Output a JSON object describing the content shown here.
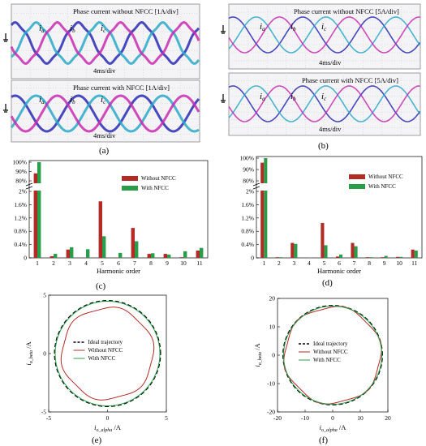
{
  "scopes": [
    {
      "title": "Phase current without NFCC [1A/div]",
      "time": "4ms/div",
      "labels": [
        "a",
        "b",
        "c"
      ]
    },
    {
      "title": "Phase current with NFCC [1A/div]",
      "time": "4ms/div",
      "labels": [
        "a",
        "b",
        "c"
      ]
    },
    {
      "title": "Phase current without NFCC [5A/div]",
      "time": "4ms/div",
      "labels": [
        "a",
        "b",
        "c"
      ]
    },
    {
      "title": "Phase current with NFCC [5A/div]",
      "time": "4ms/div",
      "labels": [
        "a",
        "b",
        "c"
      ]
    }
  ],
  "phase_prefix": "i",
  "captions": {
    "a": "(a)",
    "b": "(b)",
    "c": "(c)",
    "d": "(d)",
    "e": "(e)",
    "f": "(f)"
  },
  "colors": {
    "without": "#b22b24",
    "with": "#2a9d4b",
    "phase_a": "#2a2ab5",
    "phase_b": "#2aa8c8",
    "phase_c": "#c82ab0",
    "ideal": "#000000"
  },
  "chart_data": [
    {
      "id": "c",
      "type": "bar",
      "xlabel": "Harmonic order",
      "categories": [
        "1",
        "2",
        "3",
        "4",
        "5",
        "6",
        "7",
        "8",
        "9",
        "10",
        "11"
      ],
      "y_ticks_upper": [
        "100%",
        "90%",
        "80%"
      ],
      "y_ticks_lower": [
        "0",
        "0.4%",
        "0.8%",
        "1.2%",
        "1.6%",
        "2%"
      ],
      "series": [
        {
          "name": "Without NFCC",
          "values": [
            88,
            0.05,
            0.25,
            0.0,
            1.7,
            0.0,
            0.9,
            0.12,
            0.12,
            0.02,
            0.22
          ]
        },
        {
          "name": "With NFCC",
          "values": [
            100,
            0.12,
            0.32,
            0.26,
            0.65,
            0.15,
            0.5,
            0.14,
            0.1,
            0.2,
            0.3
          ]
        }
      ]
    },
    {
      "id": "d",
      "type": "bar",
      "xlabel": "Harmonic order",
      "categories": [
        "1",
        "2",
        "3",
        "4",
        "5",
        "6",
        "7",
        "8",
        "9",
        "10",
        "11"
      ],
      "y_ticks_upper": [
        "100%",
        "90%",
        "80%"
      ],
      "y_ticks_lower": [
        "0",
        "0.4%",
        "0.8%",
        "1.2%",
        "1.6%",
        "2%"
      ],
      "series": [
        {
          "name": "Without NFCC",
          "values": [
            96,
            0.02,
            0.45,
            0.0,
            1.05,
            0.04,
            0.45,
            0.02,
            0.02,
            0.03,
            0.25
          ]
        },
        {
          "name": "With NFCC",
          "values": [
            100,
            0.02,
            0.42,
            0.0,
            0.38,
            0.1,
            0.35,
            0.02,
            0.06,
            0.03,
            0.22
          ]
        }
      ]
    },
    {
      "id": "e",
      "type": "line",
      "xlabel": "i",
      "xlabel_sub": "o_alpha",
      "xlabel_unit": " /A",
      "ylabel": "i",
      "ylabel_sub": "o_beta",
      "ylabel_unit": " /A",
      "xlim": [
        -5,
        5
      ],
      "ylim": [
        -5,
        5
      ],
      "x_ticks": [
        "-5",
        "0",
        "5"
      ],
      "y_ticks": [
        "5",
        "0",
        "-5"
      ],
      "series": [
        {
          "name": "Ideal trajectory",
          "radius": 4.5
        },
        {
          "name": "Without NFCC",
          "radius": 3.9
        },
        {
          "name": "With NFCC",
          "radius": 4.45
        }
      ]
    },
    {
      "id": "f",
      "type": "line",
      "xlabel": "i",
      "xlabel_sub": "o_alpha",
      "xlabel_unit": " /A",
      "ylabel": "i",
      "ylabel_sub": "o_beta",
      "ylabel_unit": " /A",
      "xlim": [
        -20,
        20
      ],
      "ylim": [
        -20,
        20
      ],
      "x_ticks": [
        "-20",
        "-10",
        "0",
        "10",
        "20"
      ],
      "y_ticks": [
        "20",
        "10",
        "0",
        "-10",
        "-20"
      ],
      "series": [
        {
          "name": "Ideal trajectory",
          "radius": 18
        },
        {
          "name": "Without NFCC",
          "radius": 17.5
        },
        {
          "name": "With NFCC",
          "radius": 17.8
        }
      ]
    }
  ]
}
